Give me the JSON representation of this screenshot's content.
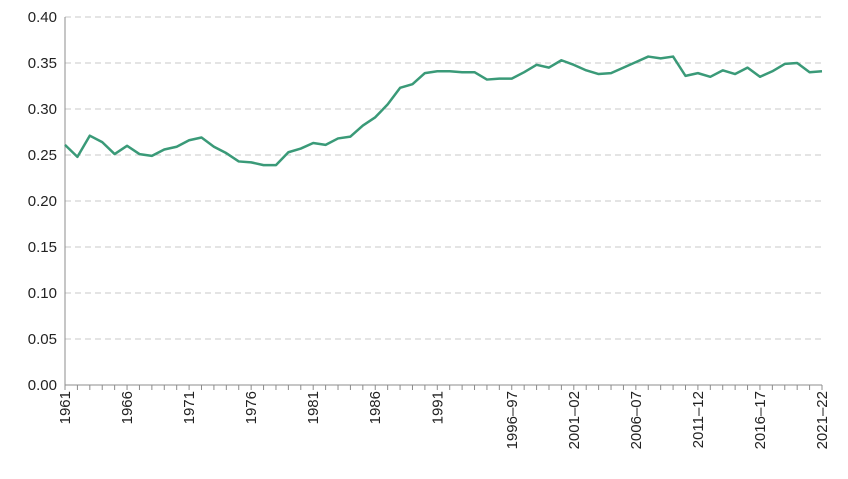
{
  "chart_data": {
    "type": "line",
    "title": "",
    "xlabel": "",
    "ylabel": "",
    "ylim": [
      0,
      0.4
    ],
    "yticks": [
      "0.00",
      "0.05",
      "0.10",
      "0.15",
      "0.20",
      "0.25",
      "0.30",
      "0.35",
      "0.40"
    ],
    "grid": true,
    "legend": "none",
    "x_tick_labels": [
      "1961",
      "1966",
      "1971",
      "1976",
      "1981",
      "1986",
      "1991",
      "1996–97",
      "2001–02",
      "2006–07",
      "2011–12",
      "2016–17",
      "2021–22"
    ],
    "categories": [
      "1961",
      "1962",
      "1963",
      "1964",
      "1965",
      "1966",
      "1967",
      "1968",
      "1969",
      "1970",
      "1971",
      "1972",
      "1973",
      "1974",
      "1975",
      "1976",
      "1977",
      "1978",
      "1979",
      "1980",
      "1981",
      "1982",
      "1983",
      "1984",
      "1985",
      "1986",
      "1987",
      "1988",
      "1989",
      "1990",
      "1991",
      "1992",
      "1993",
      "1994",
      "1994–95",
      "1995–96",
      "1996–97",
      "1997–98",
      "1998–99",
      "1999–00",
      "2000–01",
      "2001–02",
      "2002–03",
      "2003–04",
      "2004–05",
      "2005–06",
      "2006–07",
      "2007–08",
      "2008–09",
      "2009–10",
      "2010–11",
      "2011–12",
      "2012–13",
      "2013–14",
      "2014–15",
      "2015–16",
      "2016–17",
      "2017–18",
      "2018–19",
      "2019–20",
      "2020–21",
      "2021–22"
    ],
    "series": [
      {
        "color": "#3a9a78",
        "values": [
          0.261,
          0.248,
          0.271,
          0.264,
          0.251,
          0.26,
          0.251,
          0.249,
          0.256,
          0.259,
          0.266,
          0.269,
          0.259,
          0.252,
          0.243,
          0.242,
          0.239,
          0.239,
          0.253,
          0.257,
          0.263,
          0.261,
          0.268,
          0.27,
          0.282,
          0.291,
          0.305,
          0.323,
          0.327,
          0.339,
          0.341,
          0.341,
          0.34,
          0.34,
          0.332,
          0.333,
          0.333,
          0.34,
          0.348,
          0.345,
          0.353,
          0.348,
          0.342,
          0.338,
          0.339,
          0.345,
          0.351,
          0.357,
          0.355,
          0.357,
          0.336,
          0.339,
          0.335,
          0.342,
          0.338,
          0.345,
          0.335,
          0.341,
          0.349,
          0.35,
          0.34,
          0.341
        ]
      }
    ]
  }
}
